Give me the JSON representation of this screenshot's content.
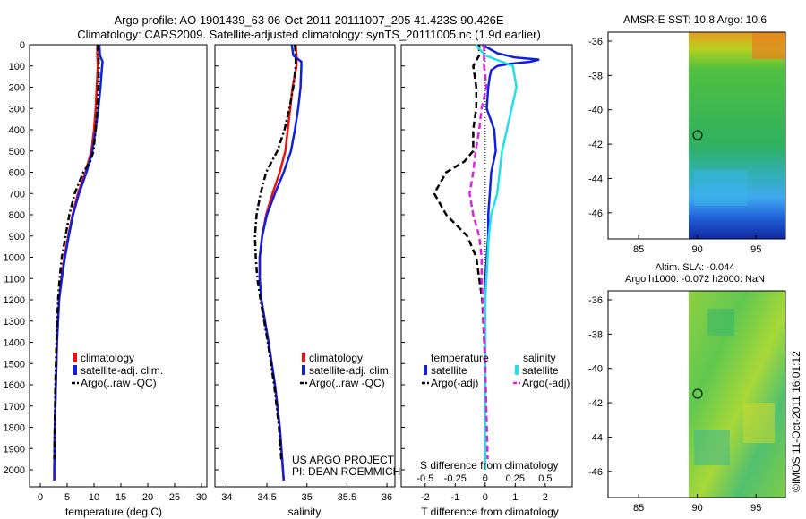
{
  "title": {
    "line1": "Argo profile: AO 1901439_63 06-Oct-2011 20111007_205 41.423S 90.426E",
    "line2": "Climatology: CARS2009. Satellite-adjusted climatology: synTS_20111005.nc (1.9d earlier)"
  },
  "colors": {
    "climatology": "#ee1111",
    "satellite": "#1020dd",
    "argo": "#000000",
    "sal_satellite": "#22e0e8",
    "sal_argo": "#e020e0"
  },
  "chart_data": [
    {
      "type": "line",
      "name": "temperature",
      "xlabel": "temperature (deg C)",
      "ylabel": "",
      "xlim": [
        -2,
        31
      ],
      "ylim": [
        2080,
        0
      ],
      "xticks": [
        "0",
        "5",
        "10",
        "15",
        "20",
        "25",
        "30"
      ],
      "yticks": [
        "0",
        "100",
        "200",
        "300",
        "400",
        "500",
        "600",
        "700",
        "800",
        "900",
        "1000",
        "1100",
        "1200",
        "1300",
        "1400",
        "1500",
        "1600",
        "1700",
        "1800",
        "1900",
        "2000"
      ],
      "legend": [
        "climatology",
        "satellite-adj. clim.",
        "Argo(..raw -QC)"
      ],
      "series": [
        {
          "name": "climatology",
          "depth": [
            0,
            50,
            100,
            200,
            300,
            400,
            500,
            600,
            700,
            800,
            900,
            1000,
            1100,
            1200,
            1400,
            1600,
            1800,
            2000,
            2050
          ],
          "values": [
            10.6,
            10.6,
            10.7,
            10.5,
            10.3,
            10.0,
            9.5,
            8.4,
            7.0,
            6.0,
            5.2,
            4.5,
            3.9,
            3.5,
            3.1,
            2.9,
            2.7,
            2.6,
            2.6
          ]
        },
        {
          "name": "satellite-adj. clim.",
          "depth": [
            0,
            50,
            80,
            100,
            200,
            300,
            400,
            500,
            600,
            700,
            800,
            900,
            1000,
            1100,
            1200,
            1400,
            1600,
            1800,
            2000,
            2050
          ],
          "values": [
            11.0,
            11.1,
            11.6,
            11.5,
            11.2,
            10.8,
            10.3,
            9.7,
            8.6,
            7.2,
            6.1,
            5.3,
            4.6,
            4.0,
            3.5,
            3.1,
            2.9,
            2.7,
            2.6,
            2.6
          ]
        },
        {
          "name": "Argo(..raw -QC)",
          "depth": [
            0,
            50,
            100,
            200,
            300,
            400,
            500,
            550,
            600,
            700,
            800,
            900,
            1000,
            1100,
            1200,
            1400,
            1600,
            1800,
            1950
          ],
          "values": [
            10.7,
            10.8,
            10.9,
            10.8,
            10.6,
            10.3,
            9.9,
            9.3,
            8.0,
            6.4,
            5.4,
            4.7,
            4.0,
            3.6,
            3.3,
            3.0,
            2.8,
            2.7,
            2.6
          ]
        }
      ]
    },
    {
      "type": "line",
      "name": "salinity",
      "xlabel": "salinity",
      "xlim": [
        33.85,
        36.1
      ],
      "ylim": [
        2080,
        0
      ],
      "xticks": [
        "34",
        "34.5",
        "35",
        "35.5",
        "36"
      ],
      "legend": [
        "climatology",
        "satellite-adj. clim.",
        "Argo(..raw -QC)"
      ],
      "series": [
        {
          "name": "climatology",
          "depth": [
            0,
            50,
            100,
            200,
            300,
            400,
            500,
            600,
            700,
            800,
            900,
            1000,
            1100,
            1200,
            1400,
            1600,
            1800,
            2000,
            2050
          ],
          "values": [
            34.86,
            34.87,
            34.87,
            34.82,
            34.79,
            34.76,
            34.73,
            34.66,
            34.57,
            34.49,
            34.44,
            34.41,
            34.41,
            34.43,
            34.52,
            34.6,
            34.66,
            34.7,
            34.71
          ]
        },
        {
          "name": "satellite-adj. clim.",
          "depth": [
            0,
            50,
            80,
            100,
            200,
            300,
            400,
            500,
            600,
            700,
            800,
            900,
            1000,
            1100,
            1200,
            1400,
            1600,
            1800,
            2000,
            2050
          ],
          "values": [
            34.81,
            34.83,
            34.93,
            34.93,
            34.92,
            34.89,
            34.85,
            34.8,
            34.71,
            34.6,
            34.5,
            34.44,
            34.41,
            34.41,
            34.43,
            34.52,
            34.6,
            34.66,
            34.7,
            34.71
          ]
        },
        {
          "name": "Argo(..raw -QC)",
          "depth": [
            0,
            50,
            100,
            200,
            300,
            400,
            500,
            550,
            600,
            700,
            800,
            900,
            1000,
            1100,
            1200,
            1400,
            1600,
            1800,
            1950
          ],
          "values": [
            34.85,
            34.86,
            34.86,
            34.83,
            34.78,
            34.72,
            34.63,
            34.56,
            34.49,
            34.42,
            34.37,
            34.35,
            34.36,
            34.38,
            34.42,
            34.51,
            34.59,
            34.65,
            34.68
          ]
        }
      ]
    },
    {
      "type": "line",
      "name": "difference",
      "xlabel": "T difference from climatology",
      "xlabel_top": "S difference from climatology",
      "xlim": [
        -2.8,
        2.9
      ],
      "ylim": [
        2080,
        0
      ],
      "xticks": [
        "-2",
        "-1",
        "0",
        "1",
        "2"
      ],
      "xticks_S": [
        "-0.5",
        "-0.25",
        "0",
        "0.25",
        "0.5"
      ],
      "legend_titles": [
        "temperature",
        "salinity"
      ],
      "legend": [
        "satellite",
        "Argo(-adj)",
        "satellite",
        "Argo(-adj)"
      ],
      "series": [
        {
          "name": "temperature satellite",
          "depth": [
            0,
            40,
            60,
            70,
            80,
            90,
            100,
            120,
            150,
            200,
            300,
            400,
            500,
            600,
            700,
            800,
            900,
            1000,
            1100,
            1200,
            1500,
            2000
          ],
          "values": [
            -0.1,
            0.4,
            1.0,
            1.8,
            1.5,
            0.8,
            0.4,
            0.2,
            0.15,
            0.1,
            0.05,
            0.3,
            0.35,
            0.2,
            0.15,
            0.1,
            0.1,
            0.05,
            0.0,
            0.0,
            0.0,
            0.0
          ]
        },
        {
          "name": "temperature Argo(-adj)",
          "depth": [
            0,
            50,
            100,
            200,
            300,
            400,
            500,
            550,
            600,
            700,
            800,
            900,
            1000,
            1100,
            1200,
            1500,
            1950
          ],
          "values": [
            -0.2,
            -0.2,
            -0.4,
            -0.3,
            -0.3,
            -0.4,
            -0.4,
            -0.7,
            -1.3,
            -1.7,
            -1.3,
            -0.6,
            -0.3,
            -0.2,
            -0.1,
            0.0,
            0.0
          ]
        },
        {
          "name": "salinity satellite",
          "depth": [
            0,
            50,
            100,
            200,
            300,
            400,
            500,
            600,
            700,
            800,
            900,
            1000,
            1100,
            1200,
            1500,
            2000
          ],
          "values": [
            -0.08,
            0.0,
            0.23,
            0.26,
            0.22,
            0.18,
            0.14,
            0.12,
            0.1,
            0.05,
            0.03,
            0.02,
            0.01,
            0.0,
            0.0,
            0.0
          ]
        },
        {
          "name": "salinity Argo(-adj)",
          "depth": [
            0,
            50,
            100,
            200,
            300,
            400,
            500,
            600,
            700,
            800,
            900,
            1000,
            1100,
            1200,
            1500,
            1950
          ],
          "values": [
            -0.01,
            -0.01,
            -0.01,
            0.01,
            -0.03,
            -0.05,
            -0.08,
            -0.1,
            -0.13,
            -0.1,
            -0.05,
            -0.03,
            -0.03,
            -0.02,
            0.0,
            0.02
          ]
        }
      ]
    }
  ],
  "panel1": {
    "legend": [
      "climatology",
      "satellite-adj. clim.",
      "Argo(..raw -QC)"
    ],
    "xlabel": "temperature (deg C)"
  },
  "panel2": {
    "legend": [
      "climatology",
      "satellite-adj. clim.",
      "Argo(..raw -QC)"
    ],
    "xlabel": "salinity",
    "project_line1": "US ARGO PROJECT",
    "project_line2": "PI: DEAN ROEMMICH"
  },
  "panel3": {
    "xlabel": "T difference from climatology",
    "s_label": "S difference from climatology",
    "legend_temperature": "temperature",
    "legend_salinity": "salinity",
    "legend_satellite": "satellite",
    "legend_argo": "Argo(-adj)"
  },
  "map1": {
    "title": "AMSR-E SST: 10.8 Argo: 10.6",
    "xticks": [
      "85",
      "90",
      "95"
    ],
    "yticks": [
      "-36",
      "-38",
      "-40",
      "-42",
      "-44",
      "-46"
    ]
  },
  "map2": {
    "title_line1": "Altim. SLA: -0.044",
    "title_line2": "Argo h1000: -0.072 h2000: NaN",
    "xticks": [
      "85",
      "90",
      "95"
    ],
    "yticks": [
      "-36",
      "-38",
      "-40",
      "-42",
      "-44",
      "-46"
    ]
  },
  "footer": {
    "imos": "©IMOS 11-Oct-2011 16:01:12"
  }
}
